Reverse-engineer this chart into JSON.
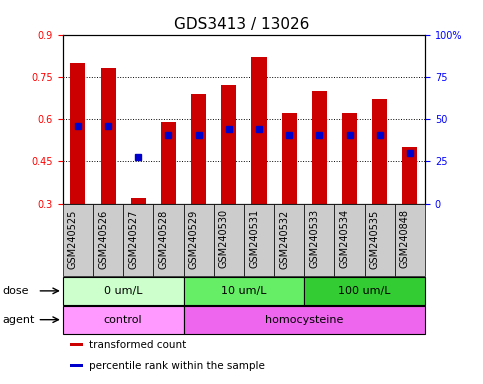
{
  "title": "GDS3413 / 13026",
  "samples": [
    "GSM240525",
    "GSM240526",
    "GSM240527",
    "GSM240528",
    "GSM240529",
    "GSM240530",
    "GSM240531",
    "GSM240532",
    "GSM240533",
    "GSM240534",
    "GSM240535",
    "GSM240848"
  ],
  "transformed_count": [
    0.8,
    0.78,
    0.32,
    0.59,
    0.69,
    0.72,
    0.82,
    0.62,
    0.7,
    0.62,
    0.67,
    0.5
  ],
  "percentile_rank": [
    0.575,
    0.575,
    0.465,
    0.545,
    0.545,
    0.565,
    0.565,
    0.545,
    0.545,
    0.545,
    0.545,
    0.48
  ],
  "bar_bottom": 0.3,
  "ylim": [
    0.3,
    0.9
  ],
  "yticks": [
    0.3,
    0.45,
    0.6,
    0.75,
    0.9
  ],
  "ytick_labels": [
    "0.3",
    "0.45",
    "0.6",
    "0.75",
    "0.9"
  ],
  "y2ticks": [
    0,
    25,
    50,
    75,
    100
  ],
  "y2tick_labels": [
    "0",
    "25",
    "50",
    "75",
    "100%"
  ],
  "bar_color": "#cc0000",
  "dot_color": "#0000cc",
  "dot_size": 4,
  "bar_width": 0.5,
  "dose_groups": [
    {
      "label": "0 um/L",
      "start": 0,
      "end": 4,
      "color": "#ccffcc"
    },
    {
      "label": "10 um/L",
      "start": 4,
      "end": 8,
      "color": "#66ee66"
    },
    {
      "label": "100 um/L",
      "start": 8,
      "end": 12,
      "color": "#33cc33"
    }
  ],
  "agent_groups": [
    {
      "label": "control",
      "start": 0,
      "end": 4,
      "color": "#ff99ff"
    },
    {
      "label": "homocysteine",
      "start": 4,
      "end": 12,
      "color": "#ee66ee"
    }
  ],
  "legend_items": [
    {
      "label": "transformed count",
      "color": "#cc0000"
    },
    {
      "label": "percentile rank within the sample",
      "color": "#0000cc"
    }
  ],
  "dose_label": "dose",
  "agent_label": "agent",
  "xtick_bg": "#cccccc",
  "background_color": "#ffffff",
  "title_fontsize": 11,
  "tick_fontsize": 7,
  "legend_fontsize": 7.5,
  "row_label_fontsize": 8,
  "row_fontsize": 8
}
